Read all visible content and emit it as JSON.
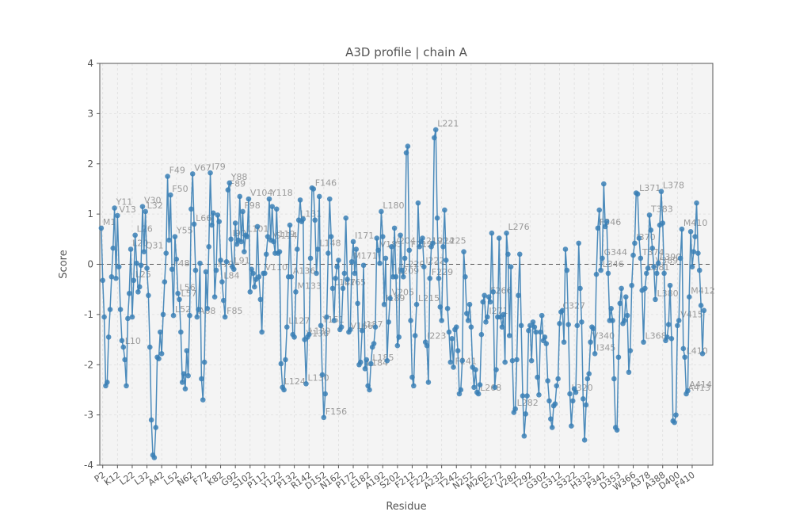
{
  "chart_data": {
    "type": "line",
    "title": "A3D profile | chain A",
    "xlabel": "Residue",
    "ylabel": "Score",
    "ylim": [
      -4,
      4
    ],
    "yticks": [
      -4,
      -3,
      -2,
      -1,
      0,
      1,
      2,
      3,
      4
    ],
    "grid": true,
    "reference_line": 0,
    "colors": {
      "line": "#3a7fb5",
      "point": "#3a7fb5",
      "plot_bg": "#f4f4f4",
      "grid": "#dedede",
      "axis": "#555555",
      "ref": "#555555"
    },
    "x": {
      "start": 1,
      "end": 416,
      "tick_labels": [
        {
          "res": 2,
          "label": "P2"
        },
        {
          "res": 12,
          "label": "K12"
        },
        {
          "res": 22,
          "label": "L22"
        },
        {
          "res": 32,
          "label": "L32"
        },
        {
          "res": 42,
          "label": "A42"
        },
        {
          "res": 52,
          "label": "L52"
        },
        {
          "res": 62,
          "label": "N62"
        },
        {
          "res": 72,
          "label": "F72"
        },
        {
          "res": 82,
          "label": "K82"
        },
        {
          "res": 92,
          "label": "G92"
        },
        {
          "res": 102,
          "label": "S102"
        },
        {
          "res": 112,
          "label": "P112"
        },
        {
          "res": 122,
          "label": "Y122"
        },
        {
          "res": 132,
          "label": "P132"
        },
        {
          "res": 142,
          "label": "R142"
        },
        {
          "res": 152,
          "label": "D152"
        },
        {
          "res": 162,
          "label": "N162"
        },
        {
          "res": 172,
          "label": "P172"
        },
        {
          "res": 182,
          "label": "E182"
        },
        {
          "res": 192,
          "label": "A192"
        },
        {
          "res": 202,
          "label": "S202"
        },
        {
          "res": 212,
          "label": "F212"
        },
        {
          "res": 222,
          "label": "F222"
        },
        {
          "res": 232,
          "label": "A232"
        },
        {
          "res": 242,
          "label": "T242"
        },
        {
          "res": 252,
          "label": "N252"
        },
        {
          "res": 262,
          "label": "M262"
        },
        {
          "res": 272,
          "label": "E272"
        },
        {
          "res": 282,
          "label": "V282"
        },
        {
          "res": 292,
          "label": "T292"
        },
        {
          "res": 302,
          "label": "G302"
        },
        {
          "res": 312,
          "label": "G312"
        },
        {
          "res": 322,
          "label": "S322"
        },
        {
          "res": 332,
          "label": "H332"
        },
        {
          "res": 342,
          "label": "P342"
        },
        {
          "res": 352,
          "label": "D353"
        },
        {
          "res": 362,
          "label": "W366"
        },
        {
          "res": 372,
          "label": "A378"
        },
        {
          "res": 382,
          "label": "A388"
        },
        {
          "res": 392,
          "label": "D400"
        },
        {
          "res": 402,
          "label": "F410"
        }
      ]
    },
    "values": [
      0.72,
      -0.32,
      -1.05,
      -2.42,
      -2.35,
      -1.45,
      -0.9,
      -0.25,
      0.32,
      1.12,
      -0.28,
      0.97,
      -0.05,
      -0.9,
      -1.52,
      -1.65,
      -1.9,
      -2.42,
      -1.08,
      -0.58,
      0.3,
      -1.05,
      -0.32,
      0.58,
      0.02,
      -0.55,
      -0.45,
      -0.02,
      1.15,
      0.25,
      1.05,
      -0.08,
      -0.62,
      -1.65,
      -3.1,
      -3.8,
      -3.85,
      -3.25,
      -1.85,
      -1.88,
      -1.35,
      -1.78,
      -1.0,
      -0.35,
      0.22,
      1.75,
      0.48,
      1.38,
      -0.1,
      -1.02,
      0.55,
      0.1,
      -0.58,
      -0.7,
      -1.35,
      -2.35,
      -2.18,
      -2.48,
      -1.72,
      -2.22,
      -1.02,
      1.1,
      1.8,
      0.8,
      -0.12,
      -1.05,
      -0.9,
      0.02,
      -2.28,
      -2.7,
      -1.95,
      -0.15,
      -0.88,
      0.35,
      1.82,
      0.78,
      1.02,
      -0.65,
      -0.12,
      0.98,
      0.85,
      0.08,
      -0.35,
      -0.72,
      -1.05,
      0.05,
      1.48,
      1.62,
      0.5,
      -0.05,
      -0.1,
      0.82,
      0.4,
      0.48,
      1.35,
      0.45,
      1.05,
      0.25,
      0.58,
      0.55,
      1.3,
      -0.55,
      -0.1,
      -0.18,
      -0.45,
      -0.3,
      0.75,
      -0.25,
      -0.7,
      -1.35,
      -0.18,
      -0.18,
      0.2,
      0.55,
      1.3,
      0.48,
      1.15,
      0.45,
      0.22,
      1.1,
      0.22,
      0.25,
      -1.98,
      -2.45,
      -2.5,
      -1.9,
      -1.25,
      -0.25,
      0.78,
      -0.25,
      -1.4,
      -1.45,
      -0.55,
      0.3,
      0.88,
      1.28,
      0.85,
      0.9,
      -1.5,
      -2.38,
      -1.45,
      -1.4,
      0.12,
      1.52,
      1.5,
      0.88,
      -0.18,
      0.3,
      1.35,
      -1.22,
      -2.2,
      -3.05,
      -2.58,
      -1.05,
      0.22,
      1.3,
      0.55,
      -0.48,
      -1.12,
      -0.28,
      -0.05,
      0.08,
      -1.3,
      -1.25,
      -0.48,
      -0.18,
      0.92,
      -0.3,
      -1.35,
      -1.3,
      0.05,
      0.45,
      -0.18,
      0.3,
      -0.78,
      -2.0,
      -1.95,
      -1.32,
      -0.02,
      -2.08,
      -1.9,
      -2.42,
      -2.5,
      -1.98,
      -1.65,
      -1.58,
      -1.25,
      0.52,
      0.28,
      0.02,
      1.05,
      0.55,
      -0.8,
      0.12,
      -1.92,
      -1.15,
      -0.68,
      0.35,
      -0.25,
      0.72,
      -0.25,
      -1.62,
      -1.45,
      0.58,
      -0.12,
      -0.25,
      0.12,
      2.22,
      2.35,
      0.28,
      -1.12,
      -2.25,
      -2.42,
      -1.42,
      -0.8,
      1.22,
      0.35,
      0.45,
      0.52,
      -0.05,
      -1.55,
      -1.62,
      -2.35,
      -0.28,
      0.35,
      0.42,
      2.52,
      2.68,
      0.92,
      -0.28,
      -0.85,
      -1.12,
      0.35,
      1.08,
      0.08,
      -0.88,
      -1.35,
      -1.95,
      -1.48,
      -2.05,
      -1.3,
      -1.25,
      -1.72,
      -2.58,
      -2.5,
      -1.92,
      0.25,
      -0.25,
      -0.98,
      -1.12,
      -0.8,
      -1.25,
      -2.05,
      -2.45,
      -2.1,
      -2.55,
      -2.58,
      -2.4,
      -1.4,
      -0.75,
      -0.62,
      -1.15,
      -1.05,
      -0.65,
      -0.75,
      0.62,
      -0.55,
      -2.45,
      -2.1,
      -1.05,
      0.52,
      -1.05,
      -1.25,
      -1.0,
      -1.95,
      0.62,
      0.2,
      -1.42,
      -0.05,
      -1.92,
      -2.95,
      -2.88,
      -1.9,
      -0.62,
      0.2,
      -1.22,
      -2.62,
      -3.42,
      -2.98,
      -2.62,
      -1.32,
      -1.22,
      -1.92,
      -1.15,
      -1.25,
      -1.35,
      -2.25,
      -2.6,
      -1.35,
      -1.02,
      -1.52,
      -1.45,
      -1.58,
      -2.32,
      -2.72,
      -3.08,
      -3.25,
      -2.82,
      -2.78,
      -2.42,
      -2.28,
      -1.18,
      -0.95,
      -0.92,
      -1.55,
      0.3,
      -0.12,
      -1.2,
      -2.58,
      -3.22,
      -2.72,
      -2.48,
      -2.55,
      -1.22,
      0.42,
      -0.48,
      -1.15,
      -2.68,
      -3.5,
      -2.8,
      -2.28,
      -2.18,
      -1.55,
      -1.25,
      -1.28,
      -1.78,
      -0.2,
      0.72,
      1.08,
      -0.12,
      0.12,
      1.6,
      0.75,
      0.85,
      -0.18,
      -1.12,
      -0.88,
      -1.12,
      -2.28,
      -3.25,
      -3.3,
      -1.85,
      -0.78,
      -0.48,
      -1.18,
      -1.12,
      -0.65,
      -1.02,
      -2.15,
      -1.72,
      -0.42,
      0.18,
      0.42,
      1.42,
      1.4,
      0.52,
      0.12,
      -0.52,
      -1.55,
      -0.48,
      -0.18,
      -0.08,
      0.98,
      0.68,
      0.32,
      -0.05,
      -0.7,
      -0.18,
      0.02,
      0.78,
      1.45,
      0.82,
      -0.18,
      -1.52,
      -1.45,
      -1.2,
      -0.42,
      -1.48,
      -3.12,
      -3.15,
      -3.0,
      -1.22,
      -1.12,
      0.12,
      0.7,
      -1.68,
      -1.85,
      -2.58,
      -2.52,
      -0.65,
      0.65,
      -0.05,
      0.25,
      0.55,
      1.22,
      0.22,
      -0.12,
      -0.82,
      -1.78,
      -0.92
    ],
    "annotations": [
      {
        "res": 1,
        "label": "M1"
      },
      {
        "res": 10,
        "label": "Y11"
      },
      {
        "res": 12,
        "label": "V13"
      },
      {
        "res": 16,
        "label": "L10"
      },
      {
        "res": 21,
        "label": "L20"
      },
      {
        "res": 23,
        "label": "L25"
      },
      {
        "res": 24,
        "label": "L26"
      },
      {
        "res": 29,
        "label": "V30"
      },
      {
        "res": 31,
        "label": "L32"
      },
      {
        "res": 30,
        "label": "Q31"
      },
      {
        "res": 46,
        "label": "F49"
      },
      {
        "res": 48,
        "label": "F50"
      },
      {
        "res": 50,
        "label": "L52"
      },
      {
        "res": 49,
        "label": "F48"
      },
      {
        "res": 51,
        "label": "Y55"
      },
      {
        "res": 53,
        "label": "L56"
      },
      {
        "res": 54,
        "label": "L57"
      },
      {
        "res": 64,
        "label": "L66"
      },
      {
        "res": 66,
        "label": "A68"
      },
      {
        "res": 63,
        "label": "V67"
      },
      {
        "res": 75,
        "label": "I79"
      },
      {
        "res": 79,
        "label": "F79"
      },
      {
        "res": 83,
        "label": "L84"
      },
      {
        "res": 88,
        "label": "Y88"
      },
      {
        "res": 90,
        "label": "L91"
      },
      {
        "res": 89,
        "label": "I90"
      },
      {
        "res": 85,
        "label": "F85"
      },
      {
        "res": 87,
        "label": "F89"
      },
      {
        "res": 97,
        "label": "F98"
      },
      {
        "res": 99,
        "label": "L101"
      },
      {
        "res": 101,
        "label": "V104"
      },
      {
        "res": 111,
        "label": "V110"
      },
      {
        "res": 115,
        "label": "Y118"
      },
      {
        "res": 116,
        "label": "V119"
      },
      {
        "res": 118,
        "label": "S114"
      },
      {
        "res": 124,
        "label": "L124"
      },
      {
        "res": 127,
        "label": "L127"
      },
      {
        "res": 130,
        "label": "A136"
      },
      {
        "res": 133,
        "label": "M133"
      },
      {
        "res": 135,
        "label": "L131"
      },
      {
        "res": 139,
        "label": "V136"
      },
      {
        "res": 140,
        "label": "L130"
      },
      {
        "res": 141,
        "label": "L139"
      },
      {
        "res": 145,
        "label": "F146"
      },
      {
        "res": 148,
        "label": "L148"
      },
      {
        "res": 150,
        "label": "Y151"
      },
      {
        "res": 152,
        "label": "F156"
      },
      {
        "res": 158,
        "label": "L147"
      },
      {
        "res": 165,
        "label": "L165"
      },
      {
        "res": 169,
        "label": "V166"
      },
      {
        "res": 171,
        "label": "M171"
      },
      {
        "res": 172,
        "label": "I171"
      },
      {
        "res": 178,
        "label": "I187"
      },
      {
        "res": 180,
        "label": "L184"
      },
      {
        "res": 184,
        "label": "L185"
      },
      {
        "res": 189,
        "label": "V185"
      },
      {
        "res": 191,
        "label": "L180"
      },
      {
        "res": 193,
        "label": "I189"
      },
      {
        "res": 197,
        "label": "V205"
      },
      {
        "res": 198,
        "label": "V204"
      },
      {
        "res": 201,
        "label": "L209"
      },
      {
        "res": 205,
        "label": "L220"
      },
      {
        "res": 210,
        "label": "F212"
      },
      {
        "res": 215,
        "label": "L215"
      },
      {
        "res": 217,
        "label": "L219"
      },
      {
        "res": 220,
        "label": "I222"
      },
      {
        "res": 221,
        "label": "I223"
      },
      {
        "res": 224,
        "label": "F229"
      },
      {
        "res": 225,
        "label": "L224"
      },
      {
        "res": 228,
        "label": "L221"
      },
      {
        "res": 233,
        "label": "L225"
      },
      {
        "res": 240,
        "label": "F241"
      },
      {
        "res": 257,
        "label": "L268"
      },
      {
        "res": 263,
        "label": "I271"
      },
      {
        "res": 264,
        "label": "F266"
      },
      {
        "res": 276,
        "label": "L276"
      },
      {
        "res": 282,
        "label": "L282"
      },
      {
        "res": 313,
        "label": "C327"
      },
      {
        "res": 319,
        "label": "L320"
      },
      {
        "res": 333,
        "label": "V340"
      },
      {
        "res": 336,
        "label": "I345"
      },
      {
        "res": 338,
        "label": "F346"
      },
      {
        "res": 340,
        "label": "L346"
      },
      {
        "res": 341,
        "label": "G344"
      },
      {
        "res": 363,
        "label": "I370"
      },
      {
        "res": 365,
        "label": "L371"
      },
      {
        "res": 367,
        "label": "T374"
      },
      {
        "res": 369,
        "label": "L368"
      },
      {
        "res": 371,
        "label": "L381"
      },
      {
        "res": 373,
        "label": "T383"
      },
      {
        "res": 376,
        "label": "V389"
      },
      {
        "res": 377,
        "label": "L380"
      },
      {
        "res": 379,
        "label": "L390"
      },
      {
        "res": 381,
        "label": "L378"
      },
      {
        "res": 393,
        "label": "V415"
      },
      {
        "res": 395,
        "label": "M410"
      },
      {
        "res": 397,
        "label": "L410"
      },
      {
        "res": 398,
        "label": "A413"
      },
      {
        "res": 399,
        "label": "A414"
      },
      {
        "res": 400,
        "label": "M412"
      }
    ]
  }
}
